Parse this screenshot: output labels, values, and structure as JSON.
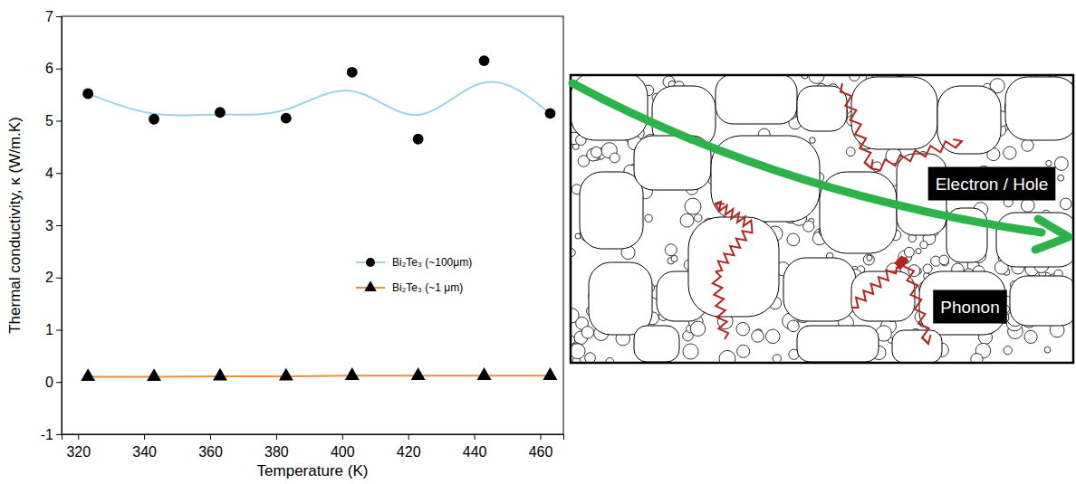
{
  "chart_data": {
    "type": "line",
    "x_label": "Temperature (K)",
    "y_label": "Thermal conductivity, κ (W/m.K)",
    "x": [
      323,
      343,
      363,
      383,
      403,
      423,
      443,
      463
    ],
    "series": [
      {
        "name": "Bi₂Te₃ (~100μm)",
        "color": "#9fd3e6",
        "marker": "circle",
        "line_style": "smooth",
        "values": [
          5.52,
          5.03,
          5.16,
          5.05,
          5.93,
          4.65,
          6.15,
          5.14
        ]
      },
      {
        "name": "Bi₂Te₃ (~1 μm)",
        "color": "#e8903a",
        "marker": "triangle",
        "line_style": "solid",
        "values": [
          0.1,
          0.1,
          0.11,
          0.11,
          0.12,
          0.12,
          0.12,
          0.12
        ]
      }
    ],
    "xlim": [
      315,
      467
    ],
    "ylim": [
      -1,
      7
    ],
    "xticks": [
      320,
      340,
      360,
      380,
      400,
      420,
      440,
      460
    ],
    "yticks": [
      -1,
      0,
      1,
      2,
      3,
      4,
      5,
      6,
      7
    ],
    "legend": "center right"
  },
  "diagram": {
    "carrier_label": "Electron / Hole",
    "phonon_label": "Phonon"
  }
}
